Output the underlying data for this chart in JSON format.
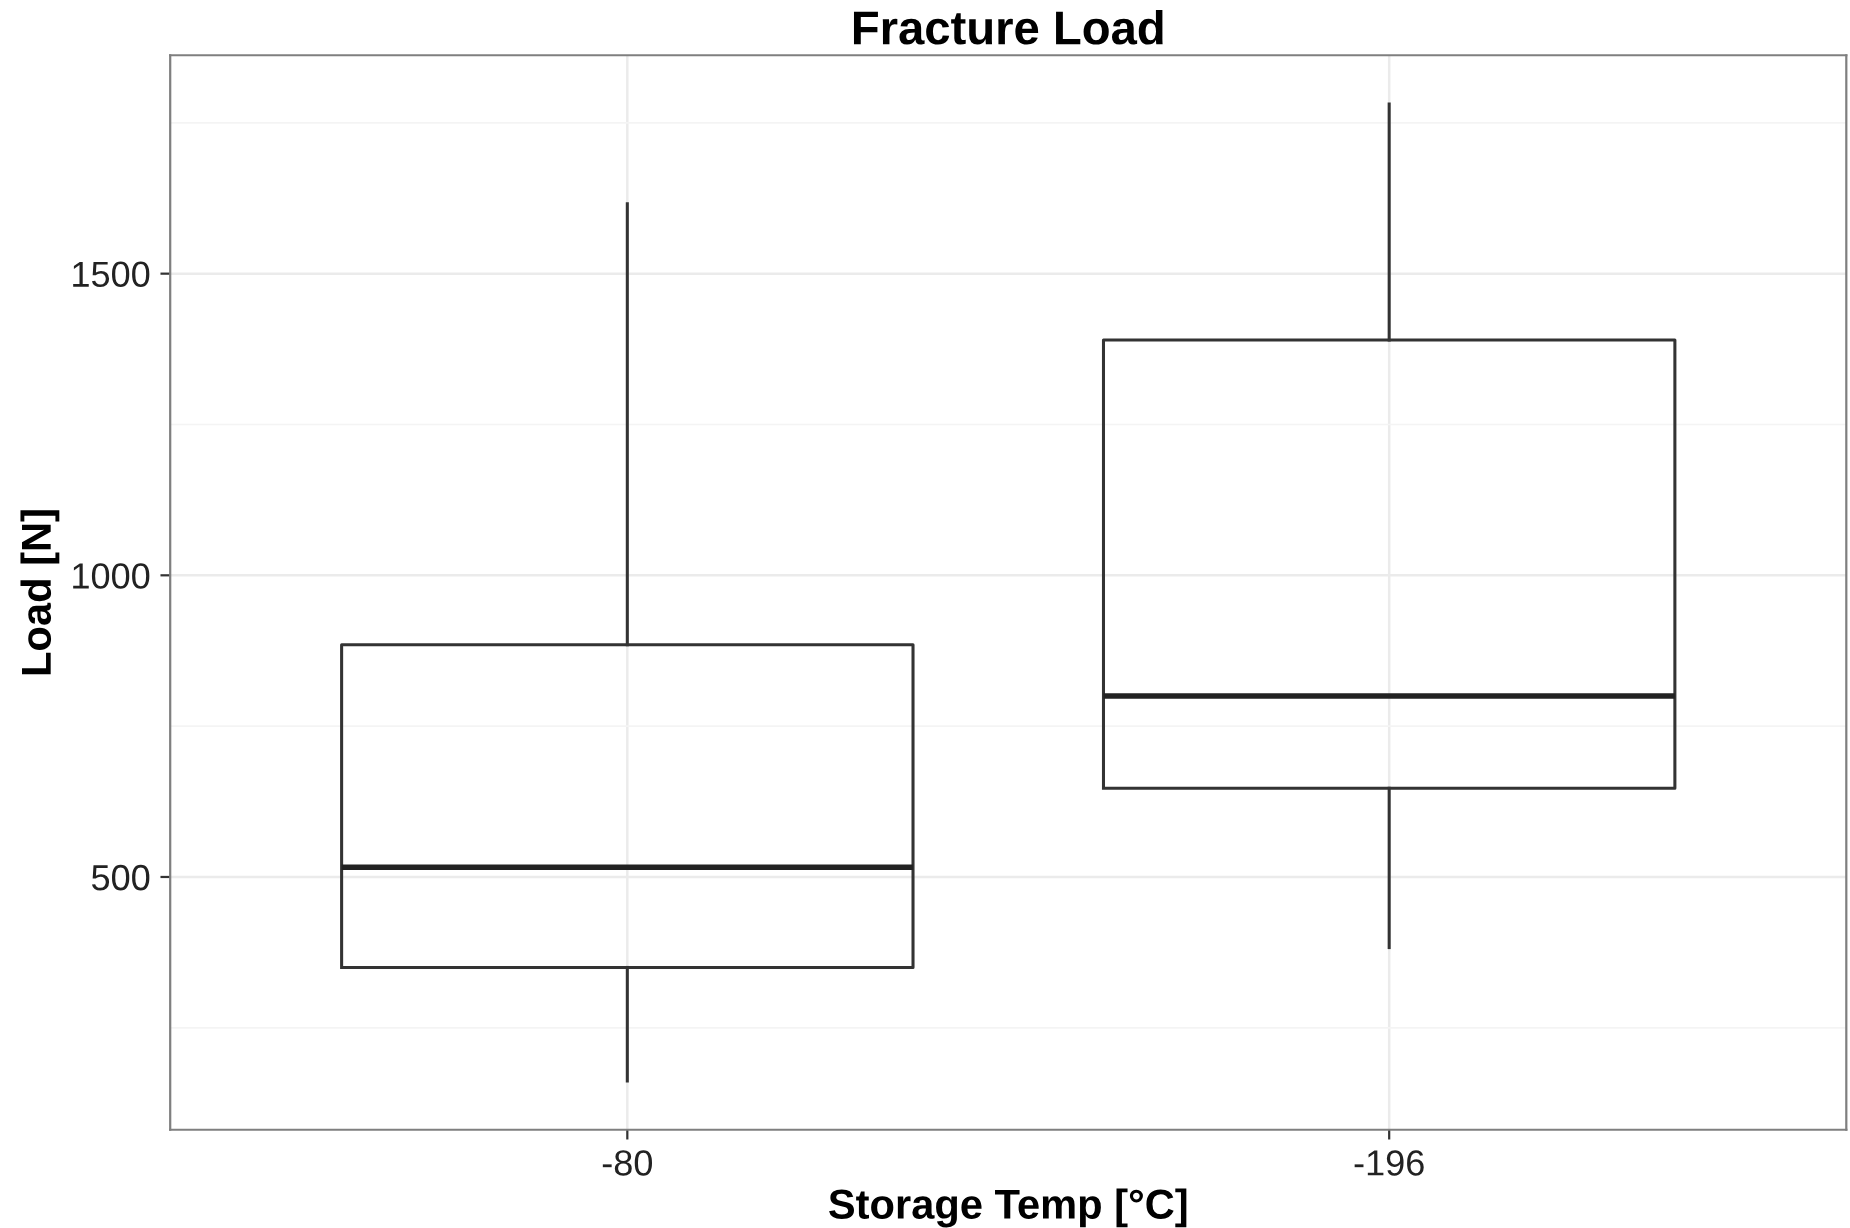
{
  "chart_data": {
    "type": "box",
    "title": "Fracture Load",
    "xlabel": "Storage Temp [°C]",
    "ylabel": "Load [N]",
    "categories": [
      "-80",
      "-196"
    ],
    "boxes": [
      {
        "low": 162,
        "q1": 350,
        "median": 516,
        "q3": 885,
        "high": 1616
      },
      {
        "low": 383,
        "q1": 647,
        "median": 800,
        "q3": 1390,
        "high": 1781
      }
    ],
    "ylim": [
      81,
      1862
    ],
    "yticks": [
      {
        "value": 250,
        "label": null
      },
      500,
      {
        "value": 750,
        "label": null
      },
      1000,
      {
        "value": 1250,
        "label": null
      },
      1500,
      {
        "value": 1750,
        "label": null
      }
    ],
    "grid": true
  }
}
